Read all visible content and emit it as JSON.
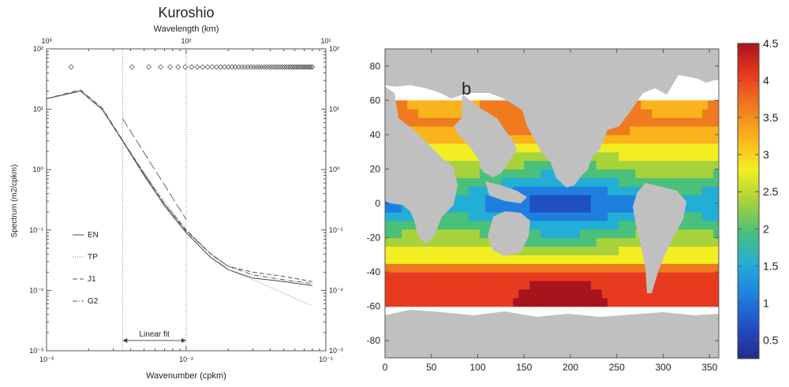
{
  "chart_data": [
    {
      "type": "line",
      "title": "Kuroshio",
      "xlabel": "Wavenumber (cpkm)",
      "ylabel": "Spectrum (m2/cpkm)",
      "x2label": "Wavelength (km)",
      "xscale": "log",
      "yscale": "log",
      "xlim": [
        0.001,
        0.1
      ],
      "ylim": [
        0.001,
        100
      ],
      "x_tick_labels": [
        "10⁻³",
        "10⁻²",
        "10⁻¹"
      ],
      "x2_tick_labels": [
        "10³",
        "10²",
        "10¹"
      ],
      "y_tick_labels": [
        "10⁻³",
        "10⁻²",
        "10⁻¹",
        "10⁰",
        "10¹",
        "10²"
      ],
      "y_tick_labels_right": [
        "10⁻³",
        "10⁻²",
        "10⁻¹",
        "10⁰",
        "10¹",
        "10²"
      ],
      "legend_position": "left",
      "series": [
        {
          "name": "EN",
          "style": "solid",
          "color": "#444444",
          "x": [
            0.001,
            0.00175,
            0.0025,
            0.0035,
            0.005,
            0.007,
            0.01,
            0.015,
            0.02,
            0.03,
            0.05,
            0.08
          ],
          "y": [
            15,
            20,
            10,
            3,
            0.8,
            0.25,
            0.09,
            0.035,
            0.022,
            0.016,
            0.014,
            0.012
          ]
        },
        {
          "name": "TP",
          "style": "dotted",
          "color": "#777777",
          "x": [
            0.001,
            0.00175,
            0.0025,
            0.0035,
            0.005,
            0.007,
            0.01,
            0.015,
            0.02,
            0.03,
            0.05,
            0.08
          ],
          "y": [
            15,
            20,
            10,
            3,
            0.9,
            0.3,
            0.1,
            0.04,
            0.022,
            0.015,
            0.009,
            0.0055
          ]
        },
        {
          "name": "J1",
          "style": "dashed",
          "color": "#555555",
          "x": [
            0.001,
            0.00175,
            0.0025,
            0.0035,
            0.005,
            0.007,
            0.01,
            0.015,
            0.02,
            0.03,
            0.05,
            0.08
          ],
          "y": [
            15,
            20,
            10,
            3,
            0.85,
            0.27,
            0.1,
            0.04,
            0.025,
            0.02,
            0.017,
            0.014
          ]
        },
        {
          "name": "G2",
          "style": "dashdot",
          "color": "#555555",
          "x": [
            0.001,
            0.00175,
            0.0025,
            0.0035,
            0.005,
            0.007,
            0.01,
            0.015,
            0.02,
            0.03,
            0.05,
            0.08
          ],
          "y": [
            15,
            21,
            10.5,
            3.1,
            0.85,
            0.27,
            0.095,
            0.04,
            0.025,
            0.018,
            0.015,
            0.013
          ]
        }
      ],
      "fit_line": {
        "x": [
          0.0035,
          0.01
        ],
        "y": [
          7,
          0.15
        ],
        "style": "long-dash"
      },
      "vertical_lines": [
        0.0035,
        0.01
      ],
      "fit_range": {
        "x": [
          0.0035,
          0.01
        ],
        "label": "Linear fit"
      },
      "diamond_markers": {
        "y": 50,
        "x_start": 0.0015,
        "x_end": 0.08,
        "count": 52
      }
    },
    {
      "type": "heatmap",
      "panel_label": "b",
      "xlim": [
        0,
        360
      ],
      "ylim": [
        -90,
        90
      ],
      "x_tick_labels": [
        "0",
        "50",
        "100",
        "150",
        "200",
        "250",
        "300",
        "350"
      ],
      "y_tick_labels": [
        "-80",
        "-60",
        "-40",
        "-20",
        "0",
        "20",
        "40",
        "60",
        "80"
      ],
      "data_extent": {
        "lon": [
          0,
          360
        ],
        "lat": [
          -60,
          60
        ]
      },
      "colorbar": {
        "range": [
          0.25,
          4.5
        ],
        "tick_labels": [
          "0.5",
          "1",
          "1.5",
          "2",
          "2.5",
          "3",
          "3.5",
          "4",
          "4.5"
        ],
        "colors": [
          "#262a8c",
          "#1f4fc2",
          "#1f7fe0",
          "#23aed6",
          "#4ac07a",
          "#a8d23b",
          "#f3ee22",
          "#f9b41d",
          "#f07a1f",
          "#e83a1f",
          "#a8141c"
        ]
      },
      "land_color": "#c0c0c0"
    }
  ]
}
